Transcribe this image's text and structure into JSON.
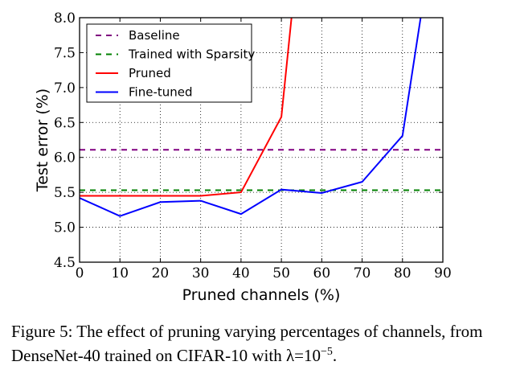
{
  "chart_data": {
    "type": "line",
    "xlabel": "Pruned channels (%)",
    "ylabel": "Test error (%)",
    "xlim": [
      0,
      90
    ],
    "ylim": [
      4.5,
      8.0
    ],
    "xticks": [
      "0",
      "10",
      "20",
      "30",
      "40",
      "50",
      "60",
      "70",
      "80",
      "90"
    ],
    "yticks": [
      "4.5",
      "5.0",
      "5.5",
      "6.0",
      "6.5",
      "7.0",
      "7.5",
      "8.0"
    ],
    "grid": true,
    "legend_position": "top-left",
    "series": [
      {
        "name": "Baseline",
        "color": "#800080",
        "style": "dashed",
        "x": [
          0,
          90
        ],
        "y": [
          6.11,
          6.11
        ]
      },
      {
        "name": "Trained with Sparsity",
        "color": "#008000",
        "style": "dashed",
        "x": [
          0,
          90
        ],
        "y": [
          5.53,
          5.53
        ]
      },
      {
        "name": "Pruned",
        "color": "#ff0000",
        "style": "solid",
        "x": [
          0,
          10,
          20,
          30,
          40,
          50,
          52.5
        ],
        "y": [
          5.45,
          5.45,
          5.45,
          5.45,
          5.5,
          6.58,
          8.0
        ]
      },
      {
        "name": "Fine-tuned",
        "color": "#0000ff",
        "style": "solid",
        "x": [
          0,
          10,
          20,
          30,
          40,
          50,
          60,
          70,
          80,
          84.5
        ],
        "y": [
          5.42,
          5.16,
          5.36,
          5.38,
          5.19,
          5.54,
          5.49,
          5.65,
          6.31,
          8.0
        ]
      }
    ]
  },
  "caption": {
    "prefix": "Figure 5: The effect of pruning varying percentages of channels, from DenseNet-40 trained on CIFAR-10 with λ=10",
    "exponent": "−5",
    "suffix": "."
  }
}
